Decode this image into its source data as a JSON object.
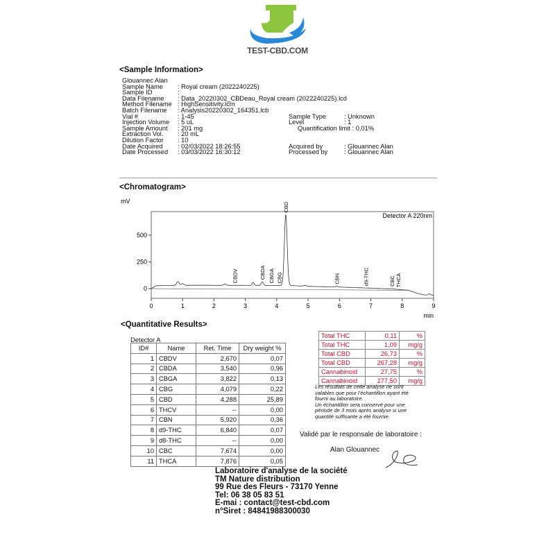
{
  "logo": {
    "text": "TEST-CBD.COM",
    "colors": {
      "green": "#8cc63f",
      "blue": "#2a88d8",
      "text": "#4a4a4a"
    }
  },
  "sample_info": {
    "heading": "<Sample Information>",
    "user": "Glouannec Alan",
    "rows": [
      {
        "k": "Sample Name",
        "v": ": Royal cream (2022240225)"
      },
      {
        "k": "Sample ID",
        "v": ":"
      },
      {
        "k": "Data Filename",
        "v": ": Data_20220302_CBDeau_Royal cream (2022240225).lcd"
      },
      {
        "k": "Method Filename",
        "v": ": HighSensitivity.lcm"
      },
      {
        "k": "Batch Filename",
        "v": ": Analysis20220302_164351.lcb"
      },
      {
        "k": "Vial #",
        "v": ": 1-45",
        "k2": "Sample Type",
        "v2": ": Unknown"
      },
      {
        "k": "Injection Volume",
        "v": ": 5 uL",
        "k2": "Level",
        "v2": ": 1"
      },
      {
        "k": "Sample Amount",
        "v": ": 201 mg",
        "k2": "",
        "v2": "",
        "extra": "Quantification limit : 0,01%"
      },
      {
        "k": "Extraction Vol.",
        "v": ": 20 mL"
      },
      {
        "k": "Dilution Factor",
        "v": ": 10"
      },
      {
        "k": "Date Acquired",
        "v": ": 02/03/2022 18:26:55",
        "k2": "Acquired by",
        "v2": ": Glouannec Alan"
      },
      {
        "k": "Date Processed",
        "v": ": 03/03/2022 16:30:12",
        "k2": "Processed by",
        "v2": ": Glouannec Alan"
      }
    ]
  },
  "chromatogram": {
    "heading": "<Chromatogram>",
    "chart_data": {
      "type": "line",
      "ylabel": "mV",
      "xlabel": "min",
      "annotation": "Detector A 220nm",
      "xlim": [
        0,
        9
      ],
      "ylim": [
        -90,
        720
      ],
      "xticks": [
        0,
        1,
        2,
        3,
        4,
        5,
        6,
        7,
        8,
        9
      ],
      "yticks": [
        0,
        250,
        500
      ],
      "peaks": [
        {
          "name": "CBDV",
          "rt": 2.67
        },
        {
          "name": "CBDA",
          "rt": 3.54
        },
        {
          "name": "CBGA",
          "rt": 3.822
        },
        {
          "name": "CBG",
          "rt": 4.079
        },
        {
          "name": "CBD",
          "rt": 4.288
        },
        {
          "name": "CBN",
          "rt": 5.92
        },
        {
          "name": "d9-THC",
          "rt": 6.84
        },
        {
          "name": "CBC",
          "rt": 7.674
        },
        {
          "name": "THCA",
          "rt": 7.876
        }
      ],
      "trace_peaks": [
        [
          0.85,
          35,
          0.04
        ],
        [
          1.0,
          15,
          0.04
        ],
        [
          2.35,
          12,
          0.04
        ],
        [
          3.25,
          28,
          0.03
        ],
        [
          3.54,
          33,
          0.035
        ],
        [
          4.288,
          660,
          0.045
        ],
        [
          4.9,
          8,
          0.04
        ],
        [
          5.92,
          6,
          0.04
        ],
        [
          7.67,
          4,
          0.03
        ],
        [
          8.87,
          12,
          0.03
        ]
      ],
      "baseline": [
        [
          0,
          0
        ],
        [
          0.15,
          28
        ],
        [
          1,
          32
        ],
        [
          4.4,
          30
        ],
        [
          5,
          22
        ],
        [
          6,
          15
        ],
        [
          7,
          5
        ],
        [
          7.7,
          -3
        ],
        [
          8.2,
          -15
        ],
        [
          8.5,
          -45
        ],
        [
          8.7,
          -58
        ],
        [
          9,
          -60
        ]
      ]
    }
  },
  "quant": {
    "heading": "<Quantitative Results>",
    "detector": "Detector A",
    "columns": [
      "ID#",
      "Name",
      "Ret. Time",
      "Dry weight %"
    ],
    "rows": [
      [
        "1",
        "CBDV",
        "2,670",
        "0,07"
      ],
      [
        "2",
        "CBDA",
        "3,540",
        "0,96"
      ],
      [
        "3",
        "CBGA",
        "3,822",
        "0,13"
      ],
      [
        "4",
        "CBG",
        "4,079",
        "0,22"
      ],
      [
        "5",
        "CBD",
        "4,288",
        "25,89"
      ],
      [
        "6",
        "THCV",
        "--",
        "0,00"
      ],
      [
        "7",
        "CBN",
        "5,920",
        "0,36"
      ],
      [
        "8",
        "d9-THC",
        "6,840",
        "0,07"
      ],
      [
        "9",
        "d8-THC",
        "--",
        "0,00"
      ],
      [
        "10",
        "CBC",
        "7,674",
        "0,00"
      ],
      [
        "11",
        "THCA",
        "7,876",
        "0,05"
      ]
    ]
  },
  "totals": {
    "color": "#c8102e",
    "rows": [
      [
        "Total THC",
        "0,11",
        "%"
      ],
      [
        "Total THC",
        "1,09",
        "mg/g"
      ],
      [
        "Total CBD",
        "26,73",
        "%"
      ],
      [
        "Total CBD",
        "267,28",
        "mg/g"
      ],
      [
        "Cannabinoid",
        "27,75",
        "%"
      ],
      [
        "Cannabinoid",
        "277,50",
        "mg/g"
      ]
    ]
  },
  "notes": {
    "p1": "Les résultats de cette analyse ne sont valables que pour l'échantillon ayant été fourni au laboratoire.",
    "p2": "Un échantillon sera conservé pour une période de 3 mois après analyse si une quantité suffisante a été fournie."
  },
  "validation": {
    "label": "Validé par le responsale de laboratoire :",
    "name": "Alan Glouannec"
  },
  "footer": [
    "Laboratoire d'analyse de la société",
    "TM Nature distribution",
    "99 Rue des Fleurs - 73170 Yenne",
    "Tel: 06 38 05 83 51",
    "E-mai : contact@test-cbd.com",
    "n°Siret : 84841988300030"
  ]
}
